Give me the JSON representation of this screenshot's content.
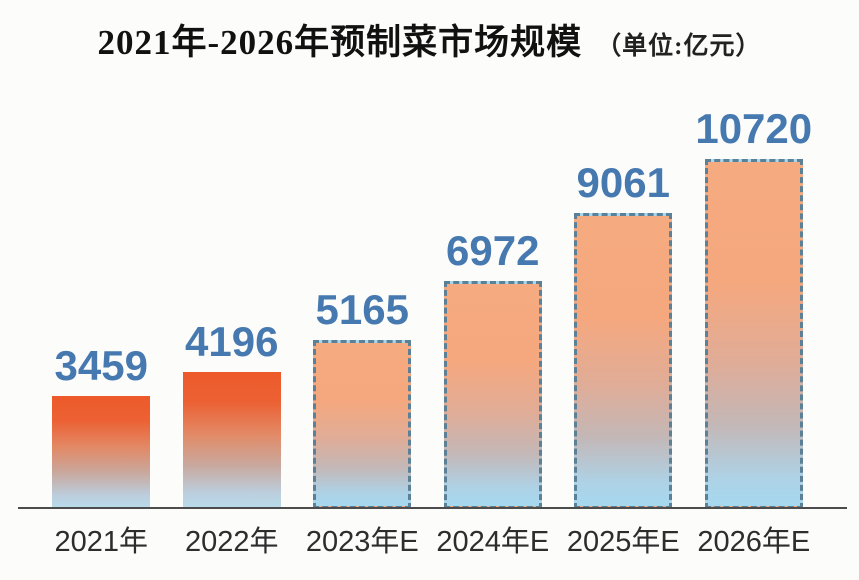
{
  "header": {
    "title": "2021年-2026年预制菜市场规模",
    "unit_label": "（单位:亿元）"
  },
  "chart_data": {
    "type": "bar",
    "title": "2021年-2026年预制菜市场规模",
    "unit": "亿元",
    "unit_label": "（单位:亿元）",
    "categories": [
      "2021年",
      "2022年",
      "2023年E",
      "2024年E",
      "2025年E",
      "2026年E"
    ],
    "values": [
      3459,
      4196,
      5165,
      6972,
      9061,
      10720
    ],
    "estimated": [
      false,
      false,
      true,
      true,
      true,
      true
    ],
    "ylim": [
      0,
      10720
    ],
    "grid": false,
    "legend": false,
    "value_labels_shown": true,
    "colors": {
      "value_label": "#4679af",
      "solid_bar_top": "#ed5a2a",
      "solid_bar_bottom": "#b8dcec",
      "estimated_bar_top": "#f6aa7f",
      "estimated_bar_bottom": "#a5d8ef",
      "estimated_border": "#5c8096",
      "axis_line": "#4c4c4c",
      "x_label_text": "#2d2d2d",
      "title_text": "#111111"
    }
  }
}
